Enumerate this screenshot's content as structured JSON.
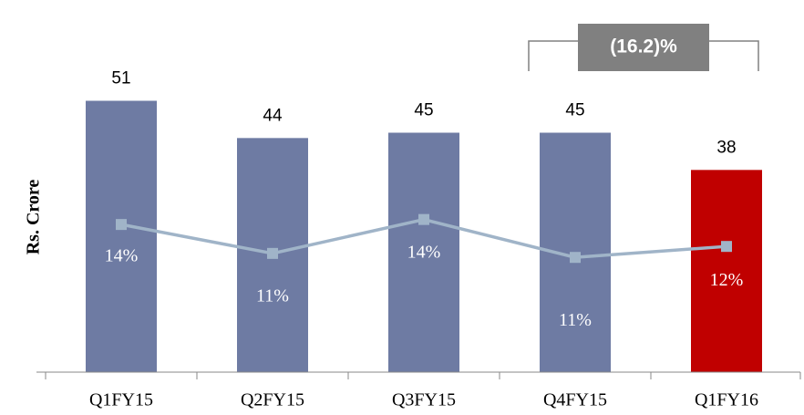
{
  "chart_data": {
    "type": "bar",
    "y_label": "Rs. Crore",
    "annotation": "(16.2)%",
    "categories": [
      "Q1FY15",
      "Q2FY15",
      "Q3FY15",
      "Q4FY15",
      "Q1FY16"
    ],
    "values": [
      51,
      44,
      45,
      45,
      38
    ],
    "colors": [
      "#6e7ba3",
      "#6e7ba3",
      "#6e7ba3",
      "#6e7ba3",
      "#c00000"
    ],
    "ylim": [
      0,
      60
    ],
    "series": [
      {
        "type": "line",
        "axis": "y2",
        "color": "#a0b4c8",
        "values": [
          13.8,
          10.9,
          14.3,
          10.5,
          11.6
        ],
        "value_labels": [
          "14%",
          "11%",
          "14%",
          "11%",
          "12%"
        ]
      }
    ],
    "y2lim": [
      -1,
      31
    ]
  }
}
